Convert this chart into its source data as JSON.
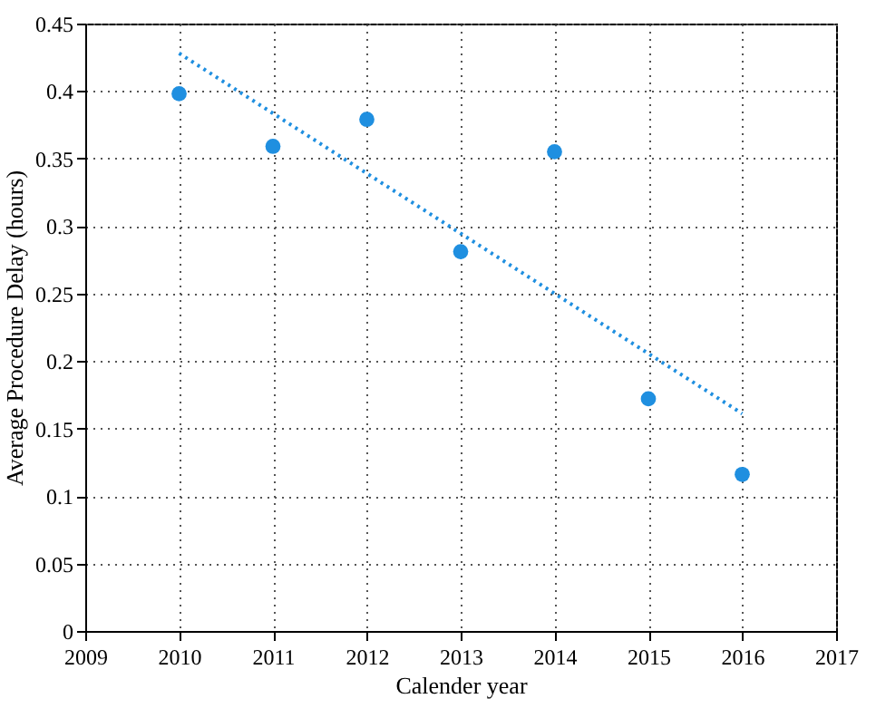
{
  "chart_data": {
    "type": "scatter",
    "xlabel": "Calender year",
    "ylabel": "Average Procedure Delay (hours)",
    "x": [
      2010,
      2011,
      2012,
      2013,
      2014,
      2015,
      2016
    ],
    "xlim": [
      2009,
      2017
    ],
    "xticks": [
      2009,
      2010,
      2011,
      2012,
      2013,
      2014,
      2015,
      2016,
      2017
    ],
    "ylim": [
      0,
      0.45
    ],
    "yticks": [
      0,
      0.05,
      0.1,
      0.15,
      0.2,
      0.25,
      0.3,
      0.35,
      0.4,
      0.45
    ],
    "grid": true,
    "marker": "circle",
    "series": [
      {
        "type": "scatter",
        "color": "#1f8fe0",
        "values": [
          0.398,
          0.359,
          0.379,
          0.281,
          0.355,
          0.172,
          0.116
        ]
      },
      {
        "type": "line",
        "color": "#1f8fe0",
        "x": [
          2010,
          2016
        ],
        "values": [
          0.428,
          0.161
        ],
        "line_style": "dotted",
        "marker": "none"
      }
    ]
  }
}
